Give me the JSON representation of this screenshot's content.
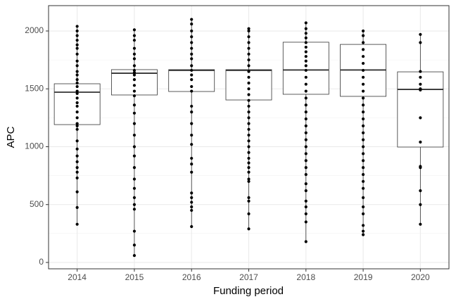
{
  "chart_data": {
    "type": "boxplot",
    "x_label": "Funding period",
    "y_label": "APC",
    "categories": [
      "2014",
      "2015",
      "2016",
      "2017",
      "2018",
      "2019",
      "2020"
    ],
    "q1": [
      1191,
      1447,
      1477,
      1404,
      1453,
      1435,
      997
    ],
    "median": [
      1471,
      1635,
      1660,
      1660,
      1663,
      1663,
      1495
    ],
    "q3": [
      1544,
      1666,
      1666,
      1666,
      1903,
      1884,
      1647
    ],
    "whisker_low": [
      330,
      60,
      310,
      290,
      180,
      240,
      330
    ],
    "whisker_high": [
      2040,
      2010,
      2100,
      2020,
      2070,
      2000,
      1970
    ],
    "points": [
      [
        330,
        475,
        610,
        730,
        780,
        820,
        870,
        920,
        980,
        1050,
        1150,
        1180,
        1200,
        1250,
        1300,
        1350,
        1380,
        1420,
        1460,
        1480,
        1520,
        1550,
        1580,
        1620,
        1650,
        1700,
        1740,
        1800,
        1850,
        1880,
        1920,
        1960,
        2000,
        2040
      ],
      [
        60,
        150,
        270,
        460,
        500,
        560,
        640,
        720,
        820,
        920,
        1000,
        1100,
        1200,
        1290,
        1360,
        1440,
        1480,
        1530,
        1580,
        1620,
        1640,
        1660,
        1700,
        1760,
        1800,
        1850,
        1920,
        1960,
        2010
      ],
      [
        310,
        450,
        480,
        520,
        560,
        600,
        780,
        850,
        900,
        1020,
        1100,
        1200,
        1300,
        1350,
        1480,
        1520,
        1580,
        1620,
        1660,
        1700,
        1760,
        1800,
        1850,
        1900,
        1950,
        2000,
        2060,
        2100
      ],
      [
        290,
        420,
        530,
        560,
        700,
        720,
        780,
        820,
        860,
        900,
        950,
        1000,
        1050,
        1100,
        1150,
        1200,
        1250,
        1300,
        1350,
        1400,
        1450,
        1500,
        1550,
        1600,
        1650,
        1700,
        1750,
        1800,
        1850,
        1900,
        1950,
        2000,
        2020
      ],
      [
        180,
        350,
        420,
        480,
        530,
        620,
        680,
        760,
        820,
        880,
        940,
        1000,
        1060,
        1120,
        1180,
        1240,
        1300,
        1360,
        1420,
        1480,
        1540,
        1600,
        1660,
        1700,
        1740,
        1780,
        1820,
        1860,
        1900,
        1940,
        1980,
        2020,
        2070
      ],
      [
        240,
        270,
        320,
        420,
        480,
        560,
        640,
        700,
        760,
        820,
        880,
        940,
        1000,
        1060,
        1120,
        1180,
        1240,
        1300,
        1360,
        1420,
        1480,
        1540,
        1600,
        1660,
        1720,
        1780,
        1840,
        1900,
        1960,
        2000
      ],
      [
        330,
        500,
        620,
        820,
        830,
        1040,
        1250,
        1490,
        1500,
        1540,
        1600,
        1650,
        1900,
        1970
      ]
    ],
    "box_color": "#ffffff",
    "line_color": "#333333",
    "point_color": "#000000",
    "ylim": [
      -55,
      2219
    ],
    "yticks": [
      0,
      500,
      1000,
      1500,
      2000
    ],
    "minor_yticks": [
      250,
      750,
      1250,
      1750
    ],
    "grid": true
  }
}
